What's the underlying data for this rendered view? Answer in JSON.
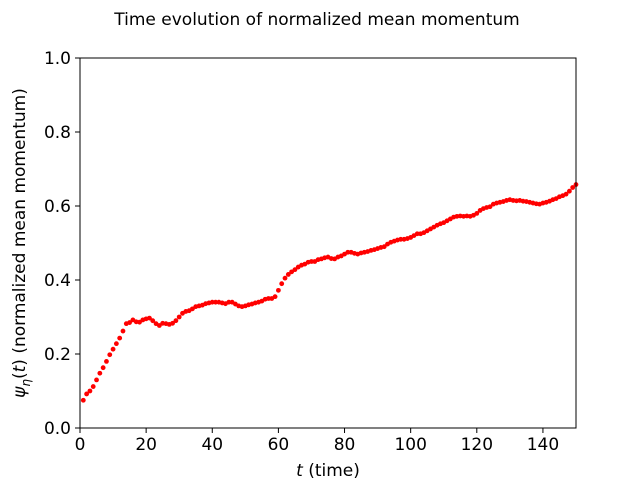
{
  "chart_data": {
    "type": "scatter",
    "title": "Time evolution of normalized mean momentum",
    "xlabel_var": "t",
    "xlabel_rest": " (time)",
    "ylabel_var": "ψ",
    "ylabel_sub": "η",
    "ylabel_arg_open": "(",
    "ylabel_arg": "t",
    "ylabel_rest": ") (normalized mean momentum)",
    "xlim": [
      0,
      150
    ],
    "ylim": [
      0,
      1
    ],
    "xticks": [
      "0",
      "20",
      "40",
      "60",
      "80",
      "100",
      "120",
      "140"
    ],
    "yticks": [
      "0.0",
      "0.2",
      "0.4",
      "0.6",
      "0.8",
      "1.0"
    ],
    "grid": false,
    "marker_color": "#ff0000",
    "series": [
      {
        "x": [
          1,
          2,
          3,
          4,
          5,
          6,
          7,
          8,
          9,
          10,
          11,
          12,
          13,
          14,
          15,
          16,
          17,
          18,
          19,
          20,
          21,
          22,
          23,
          24,
          25,
          26,
          27,
          28,
          29,
          30,
          31,
          32,
          33,
          34,
          35,
          36,
          37,
          38,
          39,
          40,
          41,
          42,
          43,
          44,
          45,
          46,
          47,
          48,
          49,
          50,
          51,
          52,
          53,
          54,
          55,
          56,
          57,
          58,
          59,
          60,
          61,
          62,
          63,
          64,
          65,
          66,
          67,
          68,
          69,
          70,
          71,
          72,
          73,
          74,
          75,
          76,
          77,
          78,
          79,
          80,
          81,
          82,
          83,
          84,
          85,
          86,
          87,
          88,
          89,
          90,
          91,
          92,
          93,
          94,
          95,
          96,
          97,
          98,
          99,
          100,
          101,
          102,
          103,
          104,
          105,
          106,
          107,
          108,
          109,
          110,
          111,
          112,
          113,
          114,
          115,
          116,
          117,
          118,
          119,
          120,
          121,
          122,
          123,
          124,
          125,
          126,
          127,
          128,
          129,
          130,
          131,
          132,
          133,
          134,
          135,
          136,
          137,
          138,
          139,
          140,
          141,
          142,
          143,
          144,
          145,
          146,
          147,
          148,
          149,
          150
        ],
        "y": [
          0.075,
          0.092,
          0.1,
          0.112,
          0.13,
          0.148,
          0.163,
          0.18,
          0.198,
          0.213,
          0.228,
          0.243,
          0.262,
          0.282,
          0.285,
          0.292,
          0.287,
          0.286,
          0.292,
          0.295,
          0.297,
          0.29,
          0.282,
          0.277,
          0.283,
          0.282,
          0.28,
          0.283,
          0.29,
          0.3,
          0.31,
          0.315,
          0.317,
          0.322,
          0.328,
          0.33,
          0.332,
          0.336,
          0.338,
          0.34,
          0.34,
          0.34,
          0.338,
          0.336,
          0.34,
          0.34,
          0.335,
          0.33,
          0.328,
          0.33,
          0.333,
          0.335,
          0.338,
          0.34,
          0.343,
          0.348,
          0.35,
          0.35,
          0.355,
          0.372,
          0.39,
          0.405,
          0.415,
          0.422,
          0.428,
          0.435,
          0.44,
          0.443,
          0.448,
          0.45,
          0.45,
          0.455,
          0.457,
          0.46,
          0.462,
          0.458,
          0.457,
          0.462,
          0.465,
          0.47,
          0.475,
          0.475,
          0.472,
          0.47,
          0.473,
          0.475,
          0.477,
          0.48,
          0.482,
          0.485,
          0.488,
          0.49,
          0.497,
          0.502,
          0.505,
          0.508,
          0.51,
          0.51,
          0.512,
          0.515,
          0.52,
          0.525,
          0.525,
          0.528,
          0.533,
          0.538,
          0.543,
          0.548,
          0.552,
          0.555,
          0.56,
          0.565,
          0.57,
          0.572,
          0.573,
          0.572,
          0.573,
          0.572,
          0.575,
          0.58,
          0.588,
          0.593,
          0.596,
          0.598,
          0.605,
          0.608,
          0.61,
          0.612,
          0.615,
          0.617,
          0.615,
          0.614,
          0.615,
          0.613,
          0.612,
          0.61,
          0.608,
          0.606,
          0.605,
          0.608,
          0.61,
          0.613,
          0.617,
          0.62,
          0.625,
          0.628,
          0.632,
          0.64,
          0.65,
          0.658
        ]
      }
    ]
  }
}
